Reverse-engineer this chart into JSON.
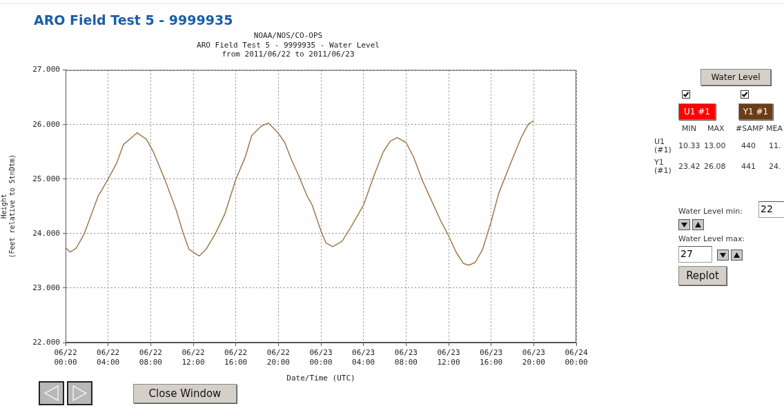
{
  "chart_data": {
    "type": "line",
    "title": "ARO Field Test 5 - 9999935",
    "subtitle": "NOAA/NOS/CO-OPS\nARO Field Test 5 - 9999935 - Water Level\nfrom 2011/06/22 to 2011/06/23",
    "xlabel": "Date/Time (UTC)",
    "ylabel": "Height\n(Feet relative to StnDtm)",
    "series": [
      {
        "color": "#a0784a",
        "x": [
          "2011-06-22T00:00",
          "2011-06-22T00:26",
          "2011-06-22T01:00",
          "2011-06-22T01:46",
          "2011-06-22T03:04",
          "2011-06-22T04:00",
          "2011-06-22T04:48",
          "2011-06-22T05:26",
          "2011-06-22T06:44",
          "2011-06-22T07:36",
          "2011-06-22T08:15",
          "2011-06-22T09:20",
          "2011-06-22T10:24",
          "2011-06-22T11:04",
          "2011-06-22T11:36",
          "2011-06-22T12:34",
          "2011-06-22T13:12",
          "2011-06-22T14:05",
          "2011-06-22T14:57",
          "2011-06-22T16:00",
          "2011-06-22T16:54",
          "2011-06-22T17:30",
          "2011-06-22T18:24",
          "2011-06-22T19:03",
          "2011-06-22T20:00",
          "2011-06-22T20:36",
          "2011-06-22T21:12",
          "2011-06-22T21:54",
          "2011-06-22T22:42",
          "2011-06-22T23:11",
          "2011-06-23T00:00",
          "2011-06-23T00:28",
          "2011-06-23T01:06",
          "2011-06-23T02:00",
          "2011-06-23T02:51",
          "2011-06-23T04:00",
          "2011-06-23T05:00",
          "2011-06-23T05:52",
          "2011-06-23T06:30",
          "2011-06-23T07:10",
          "2011-06-23T08:00",
          "2011-06-23T08:42",
          "2011-06-23T09:30",
          "2011-06-23T10:06",
          "2011-06-23T11:18",
          "2011-06-23T12:00",
          "2011-06-23T12:42",
          "2011-06-23T13:24",
          "2011-06-23T13:54",
          "2011-06-23T14:30",
          "2011-06-23T15:12",
          "2011-06-23T16:00",
          "2011-06-23T16:42",
          "2011-06-23T17:18",
          "2011-06-23T18:00",
          "2011-06-23T18:48",
          "2011-06-23T19:30",
          "2011-06-23T20:00"
        ],
        "values": [
          23.74,
          23.66,
          23.73,
          24.0,
          24.69,
          25.0,
          25.29,
          25.63,
          25.85,
          25.73,
          25.5,
          24.99,
          24.43,
          24.0,
          23.71,
          23.59,
          23.71,
          24.0,
          24.35,
          24.99,
          25.41,
          25.8,
          25.97,
          26.03,
          25.84,
          25.67,
          25.37,
          25.07,
          24.69,
          24.52,
          24.05,
          23.83,
          23.76,
          23.86,
          24.13,
          24.52,
          25.07,
          25.5,
          25.69,
          25.76,
          25.67,
          25.41,
          24.99,
          24.73,
          24.22,
          23.96,
          23.66,
          23.45,
          23.42,
          23.47,
          23.71,
          24.22,
          24.73,
          25.03,
          25.37,
          25.75,
          26.01,
          26.07
        ]
      }
    ],
    "xlim": [
      "2011-06-22T00:00",
      "2011-06-24T00:00"
    ],
    "xticks": [
      {
        "value": "2011-06-22T00:00",
        "label": "06/22\n00:00"
      },
      {
        "value": "2011-06-22T04:00",
        "label": "06/22\n04:00"
      },
      {
        "value": "2011-06-22T08:00",
        "label": "06/22\n08:00"
      },
      {
        "value": "2011-06-22T12:00",
        "label": "06/22\n12:00"
      },
      {
        "value": "2011-06-22T16:00",
        "label": "06/22\n16:00"
      },
      {
        "value": "2011-06-22T20:00",
        "label": "06/22\n20:00"
      },
      {
        "value": "2011-06-23T00:00",
        "label": "06/23\n00:00"
      },
      {
        "value": "2011-06-23T04:00",
        "label": "06/23\n04:00"
      },
      {
        "value": "2011-06-23T08:00",
        "label": "06/23\n08:00"
      },
      {
        "value": "2011-06-23T12:00",
        "label": "06/23\n12:00"
      },
      {
        "value": "2011-06-23T16:00",
        "label": "06/23\n16:00"
      },
      {
        "value": "2011-06-23T20:00",
        "label": "06/23\n20:00"
      },
      {
        "value": "2011-06-24T00:00",
        "label": "06/24\n00:00"
      }
    ],
    "ylim": [
      22,
      27
    ],
    "yticks": [
      {
        "value": 22,
        "label": "22.000"
      },
      {
        "value": 23,
        "label": "23.000"
      },
      {
        "value": 24,
        "label": "24.000"
      },
      {
        "value": 25,
        "label": "25.000"
      },
      {
        "value": 26,
        "label": "26.000"
      },
      {
        "value": 27,
        "label": "27.000"
      }
    ],
    "grid": true,
    "marker": "none",
    "line_style": "solid",
    "annotations": [
      "Water Level",
      "U1 #1",
      "Y1 #1",
      "MIN",
      "MAX",
      "#SAMP",
      "MEA",
      "U1\n(#1)",
      "10.33",
      "13.00",
      "440",
      "11.",
      "Y1\n(#1)",
      "23.42",
      "26.08",
      "441",
      "24.",
      "Water Level min:",
      "22",
      "Water Level max:",
      "27",
      "Replot",
      "Close Window"
    ]
  }
}
